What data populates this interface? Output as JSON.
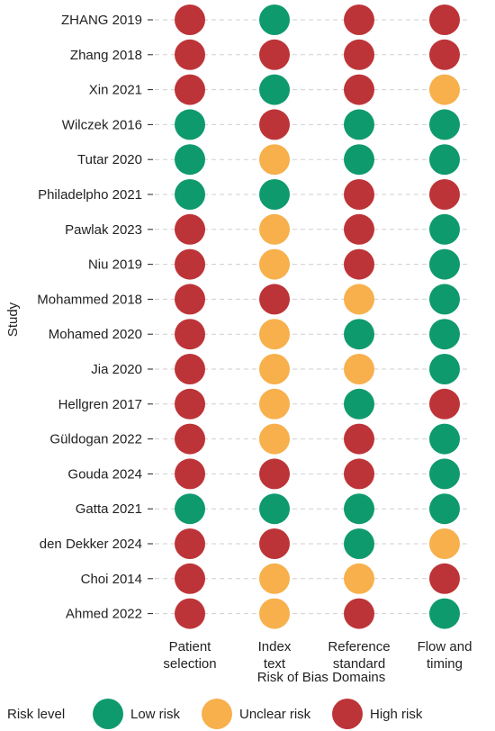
{
  "chart_data": {
    "type": "traffic-light",
    "title": "",
    "ylabel": "Study",
    "xlabel": "Risk of Bias Domains",
    "domains": [
      [
        "Patient",
        "selection"
      ],
      [
        "Index",
        "text"
      ],
      [
        "Reference",
        "standard"
      ],
      [
        "Flow and",
        "timing"
      ]
    ],
    "studies": [
      "ZHANG 2019",
      "Zhang 2018",
      "Xin 2021",
      "Wilczek 2016",
      "Tutar 2020",
      "Philadelpho 2021",
      "Pawlak 2023",
      "Niu 2019",
      "Mohammed 2018",
      "Mohamed 2020",
      "Jia 2020",
      "Hellgren 2017",
      "Güldogan 2022",
      "Gouda 2024",
      "Gatta 2021",
      "den Dekker 2024",
      "Choi 2014",
      "Ahmed 2022"
    ],
    "ratings": [
      [
        "high",
        "low",
        "high",
        "high"
      ],
      [
        "high",
        "high",
        "high",
        "high"
      ],
      [
        "high",
        "low",
        "high",
        "unclear"
      ],
      [
        "low",
        "high",
        "low",
        "low"
      ],
      [
        "low",
        "unclear",
        "low",
        "low"
      ],
      [
        "low",
        "low",
        "high",
        "high"
      ],
      [
        "high",
        "unclear",
        "high",
        "low"
      ],
      [
        "high",
        "unclear",
        "high",
        "low"
      ],
      [
        "high",
        "high",
        "unclear",
        "low"
      ],
      [
        "high",
        "unclear",
        "low",
        "low"
      ],
      [
        "high",
        "unclear",
        "unclear",
        "low"
      ],
      [
        "high",
        "unclear",
        "low",
        "high"
      ],
      [
        "high",
        "unclear",
        "high",
        "low"
      ],
      [
        "high",
        "high",
        "high",
        "low"
      ],
      [
        "low",
        "low",
        "low",
        "low"
      ],
      [
        "high",
        "high",
        "low",
        "unclear"
      ],
      [
        "high",
        "unclear",
        "unclear",
        "high"
      ],
      [
        "high",
        "unclear",
        "high",
        "low"
      ]
    ],
    "legend": {
      "title": "Risk level",
      "placement": "bottom",
      "items": [
        {
          "key": "low",
          "label": "Low risk"
        },
        {
          "key": "unclear",
          "label": "Unclear risk"
        },
        {
          "key": "high",
          "label": "High risk"
        }
      ]
    },
    "colors": {
      "low": "#0f9a6e",
      "unclear": "#f7b04c",
      "high": "#bd3438",
      "grid": "#cfcfcf",
      "text": "#222222"
    },
    "grid": true
  }
}
